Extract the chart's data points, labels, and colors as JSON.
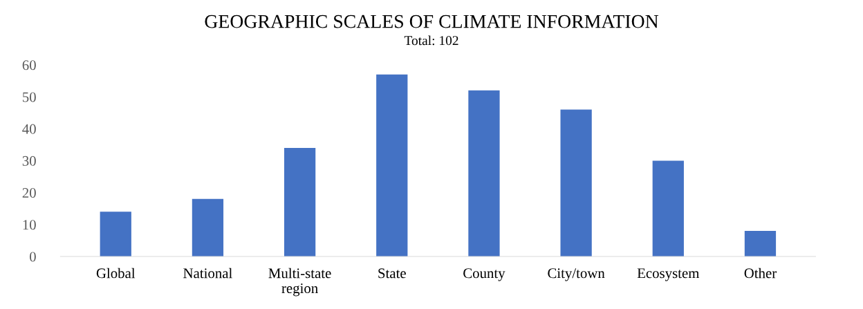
{
  "chart_data": {
    "type": "bar",
    "title": "GEOGRAPHIC SCALES OF CLIMATE INFORMATION",
    "subtitle": "Total: 102",
    "categories": [
      "Global",
      "National",
      "Multi-state\nregion",
      "State",
      "County",
      "City/town",
      "Ecosystem",
      "Other"
    ],
    "values": [
      14,
      18,
      34,
      57,
      52,
      46,
      30,
      8
    ],
    "color": "#4472c4",
    "ylim": [
      0,
      60
    ],
    "yticks": [
      0,
      10,
      20,
      30,
      40,
      50,
      60
    ],
    "grid": false
  }
}
